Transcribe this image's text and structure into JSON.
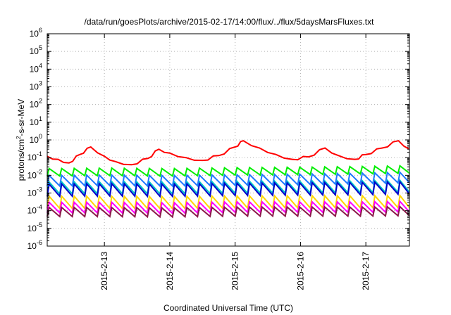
{
  "chart_data": {
    "type": "line",
    "title": "/data/run/goesPlots/archive/2015-02-17/14:00/flux/../flux/5daysMarsFluxes.txt",
    "xlabel": "Coordinated Universal Time (UTC)",
    "ylabel_parts": [
      "protons/cm",
      "2",
      "-s-sr-MeV"
    ],
    "y_scale": "log",
    "y_exponent_min": -6,
    "y_exponent_max": 6,
    "ylim": [
      1e-06,
      1000000
    ],
    "xlim": [
      "2015-02-12 03:00",
      "2015-02-17 16:00"
    ],
    "grid": true,
    "legend": "none",
    "x_ticks": [
      {
        "value": "2015-02-13 00:00",
        "label": "2015-2-13"
      },
      {
        "value": "2015-02-14 00:00",
        "label": "2015-2-14"
      },
      {
        "value": "2015-02-15 00:00",
        "label": "2015-2-15"
      },
      {
        "value": "2015-02-16 00:00",
        "label": "2015-2-16"
      },
      {
        "value": "2015-02-17 00:00",
        "label": "2015-2-17"
      }
    ],
    "series_style": {
      "period_hours": 4.6
    },
    "series": [
      {
        "color": "#ff0000",
        "x": [
          "2015-02-12 03:00",
          "2015-02-12 07:00",
          "2015-02-12 11:00",
          "2015-02-12 15:00",
          "2015-02-12 19:00",
          "2015-02-13 00:00",
          "2015-02-13 04:00",
          "2015-02-13 10:00",
          "2015-02-13 16:00",
          "2015-02-13 20:00",
          "2015-02-14 00:00",
          "2015-02-14 06:00",
          "2015-02-14 12:00",
          "2015-02-14 18:00",
          "2015-02-15 00:00",
          "2015-02-15 03:00",
          "2015-02-15 09:00",
          "2015-02-15 15:00",
          "2015-02-15 21:00",
          "2015-02-16 03:00",
          "2015-02-16 09:00",
          "2015-02-16 14:00",
          "2015-02-16 20:00",
          "2015-02-17 00:00",
          "2015-02-17 06:00",
          "2015-02-17 12:00",
          "2015-02-17 16:00"
        ],
        "y": [
          0.12,
          0.08,
          0.05,
          0.15,
          0.4,
          0.12,
          0.06,
          0.04,
          0.09,
          0.3,
          0.18,
          0.1,
          0.07,
          0.13,
          0.4,
          0.9,
          0.35,
          0.15,
          0.08,
          0.11,
          0.35,
          0.13,
          0.08,
          0.15,
          0.35,
          0.9,
          0.3
        ]
      },
      {
        "color": "#00ee00",
        "x": [
          "2015-02-12 03:00",
          "2015-02-13 00:00",
          "2015-02-14 00:00",
          "2015-02-15 00:00",
          "2015-02-16 00:00",
          "2015-02-17 00:00",
          "2015-02-17 16:00"
        ],
        "y": [
          0.015,
          0.016,
          0.015,
          0.017,
          0.018,
          0.02,
          0.022
        ],
        "spike_factor": 1.6,
        "trough_factor": 0.6
      },
      {
        "color": "#1e78ff",
        "x": [
          "2015-02-12 03:00",
          "2015-02-13 00:00",
          "2015-02-14 00:00",
          "2015-02-15 00:00",
          "2015-02-16 00:00",
          "2015-02-17 00:00",
          "2015-02-17 16:00"
        ],
        "y": [
          0.0055,
          0.0058,
          0.0055,
          0.006,
          0.0065,
          0.0075,
          0.0085
        ],
        "spike_factor": 1.8,
        "trough_factor": 0.45
      },
      {
        "color": "#00c8c8",
        "x": [
          "2015-02-12 03:00",
          "2015-02-13 00:00",
          "2015-02-14 00:00",
          "2015-02-15 00:00",
          "2015-02-16 00:00",
          "2015-02-17 00:00",
          "2015-02-17 16:00"
        ],
        "y": [
          0.0022,
          0.0023,
          0.0022,
          0.0024,
          0.0025,
          0.0026,
          0.0028
        ],
        "spike_factor": 1.9,
        "trough_factor": 0.4
      },
      {
        "color": "#0000cc",
        "x": [
          "2015-02-12 03:00",
          "2015-02-13 00:00",
          "2015-02-14 00:00",
          "2015-02-15 00:00",
          "2015-02-16 00:00",
          "2015-02-17 00:00",
          "2015-02-17 16:00"
        ],
        "y": [
          0.0016,
          0.0017,
          0.0016,
          0.0018,
          0.0019,
          0.002,
          0.0022
        ],
        "spike_factor": 2.0,
        "trough_factor": 0.4
      },
      {
        "color": "#ffd700",
        "x": [
          "2015-02-12 03:00",
          "2015-02-13 00:00",
          "2015-02-14 00:00",
          "2015-02-15 00:00",
          "2015-02-16 00:00",
          "2015-02-17 00:00",
          "2015-02-17 16:00"
        ],
        "y": [
          0.0003,
          0.0003,
          0.00029,
          0.00031,
          0.00032,
          0.00032,
          0.00033
        ],
        "spike_factor": 2.2,
        "trough_factor": 0.45
      },
      {
        "color": "#ff00ff",
        "x": [
          "2015-02-12 03:00",
          "2015-02-13 00:00",
          "2015-02-14 00:00",
          "2015-02-15 00:00",
          "2015-02-16 00:00",
          "2015-02-17 00:00",
          "2015-02-17 16:00"
        ],
        "y": [
          0.00015,
          0.00015,
          0.00014,
          0.00016,
          0.00016,
          0.00016,
          0.00017
        ],
        "spike_factor": 2.0,
        "trough_factor": 0.5
      },
      {
        "color": "#8b1a4a",
        "x": [
          "2015-02-12 03:00",
          "2015-02-13 00:00",
          "2015-02-14 00:00",
          "2015-02-15 00:00",
          "2015-02-16 00:00",
          "2015-02-17 00:00",
          "2015-02-17 16:00"
        ],
        "y": [
          8.5e-05,
          8.5e-05,
          8e-05,
          9e-05,
          9e-05,
          9e-05,
          9.5e-05
        ],
        "spike_factor": 1.8,
        "trough_factor": 0.55
      }
    ]
  }
}
